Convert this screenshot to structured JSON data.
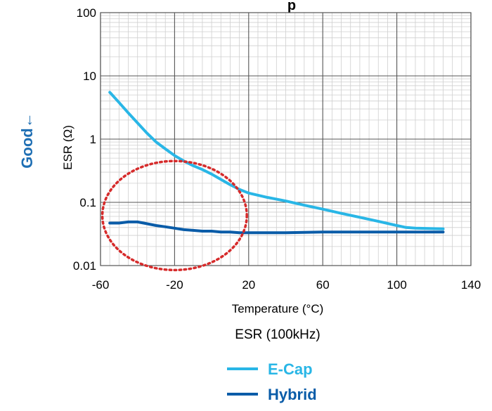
{
  "chart_data": {
    "type": "line",
    "title": "ESR (100kHz)",
    "xlabel": "Temperature  (°C)",
    "ylabel": "ESR  (Ω)",
    "good_label": "Good",
    "good_arrow": "←",
    "xlim": [
      -60,
      140
    ],
    "ylim": [
      0.01,
      100
    ],
    "yscale": "log",
    "xticks": [
      -60,
      -20,
      20,
      60,
      100,
      140
    ],
    "xtick_labels": [
      "-60",
      "-20",
      "20",
      "60",
      "100",
      "140"
    ],
    "yticks": [
      0.01,
      0.1,
      1,
      10,
      100
    ],
    "ytick_labels": [
      "0.01",
      "0.1",
      "1",
      "10",
      "100"
    ],
    "grid": true,
    "legend_position": "bottom-center",
    "series": [
      {
        "name": "E-Cap",
        "color": "#29b6e6",
        "x": [
          -55,
          -50,
          -45,
          -40,
          -35,
          -30,
          -25,
          -20,
          -15,
          -10,
          -5,
          0,
          5,
          10,
          15,
          20,
          30,
          40,
          50,
          60,
          70,
          80,
          90,
          100,
          105,
          110,
          125
        ],
        "y": [
          5.5,
          3.8,
          2.6,
          1.8,
          1.25,
          0.9,
          0.7,
          0.55,
          0.45,
          0.38,
          0.33,
          0.28,
          0.23,
          0.19,
          0.16,
          0.14,
          0.12,
          0.105,
          0.09,
          0.078,
          0.067,
          0.058,
          0.05,
          0.043,
          0.04,
          0.039,
          0.038
        ]
      },
      {
        "name": "Hybrid",
        "color": "#0a5ca8",
        "x": [
          -55,
          -50,
          -45,
          -40,
          -35,
          -30,
          -25,
          -20,
          -15,
          -10,
          -5,
          0,
          5,
          10,
          15,
          20,
          40,
          60,
          80,
          100,
          125
        ],
        "y": [
          0.047,
          0.047,
          0.049,
          0.049,
          0.046,
          0.043,
          0.041,
          0.039,
          0.037,
          0.036,
          0.035,
          0.035,
          0.034,
          0.034,
          0.033,
          0.033,
          0.033,
          0.034,
          0.034,
          0.034,
          0.034
        ]
      }
    ],
    "annotations": [
      {
        "type": "ellipse",
        "style": "dotted",
        "color": "#d62b2b",
        "cx": -20,
        "cy": 0.045,
        "rx_data": 39,
        "y_top": 0.45,
        "y_bottom": 0.0085
      }
    ]
  }
}
